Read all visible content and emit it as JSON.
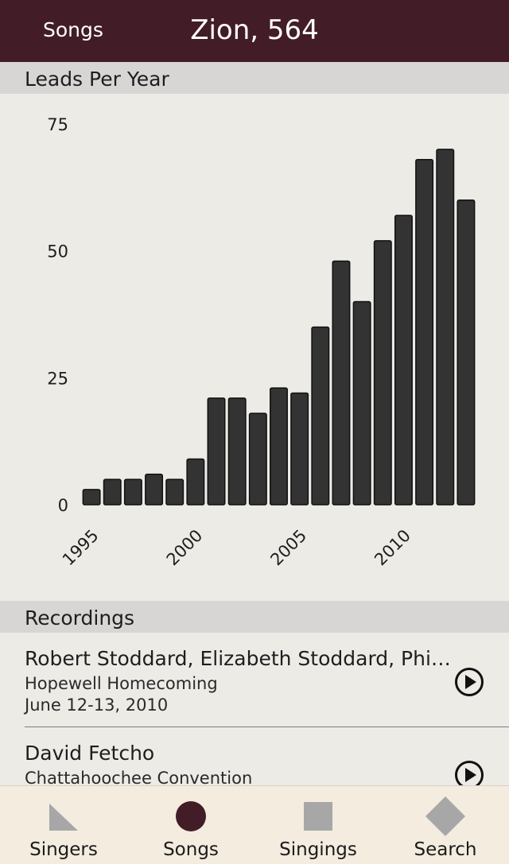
{
  "nav": {
    "back_label": "Songs",
    "title": "Zion, 564"
  },
  "leads_section": {
    "title": "Leads Per Year"
  },
  "chart_data": {
    "type": "bar",
    "title": "Leads Per Year",
    "categories": [
      "1995",
      "1996",
      "1997",
      "1998",
      "1999",
      "2000",
      "2001",
      "2002",
      "2003",
      "2004",
      "2005",
      "2006",
      "2007",
      "2008",
      "2009",
      "2010",
      "2011",
      "2012",
      "2013"
    ],
    "values": [
      3,
      5,
      5,
      6,
      5,
      9,
      21,
      21,
      18,
      23,
      22,
      35,
      48,
      40,
      52,
      57,
      68,
      70,
      60
    ],
    "x_tick_labels": [
      "1995",
      "2000",
      "2005",
      "2010"
    ],
    "y_ticks": [
      0,
      25,
      50,
      75
    ],
    "ylim": [
      0,
      75
    ],
    "xlabel": "",
    "ylabel": "",
    "bar_color": "#333333",
    "grid": false
  },
  "recordings_section": {
    "title": "Recordings"
  },
  "recordings": [
    {
      "name": "Robert Stoddard, Elizabeth Stoddard, Philip Stoddard",
      "event": "Hopewell Homecoming",
      "date": "June 12-13, 2010"
    },
    {
      "name": "David Fetcho",
      "event": "Chattahoochee Convention",
      "date": ""
    }
  ],
  "tabbar": {
    "tabs": [
      {
        "label": "Singers",
        "icon": "triangle-icon",
        "active": false
      },
      {
        "label": "Songs",
        "icon": "circle-icon",
        "active": true
      },
      {
        "label": "Singings",
        "icon": "square-icon",
        "active": false
      },
      {
        "label": "Search",
        "icon": "diamond-icon",
        "active": false
      }
    ]
  },
  "colors": {
    "nav_bg": "#421c27",
    "active_tab_icon": "#421c27",
    "inactive_tab_icon": "#a7a7a7",
    "page_bg": "#ecebe6"
  }
}
